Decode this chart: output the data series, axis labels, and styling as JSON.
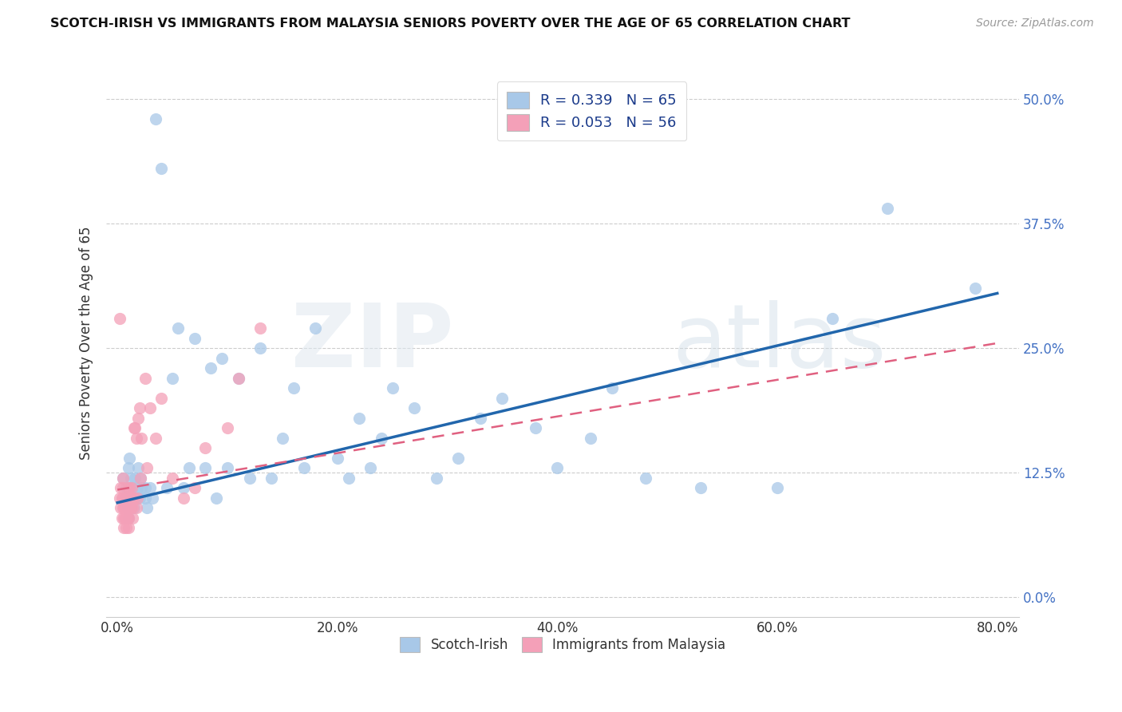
{
  "title": "SCOTCH-IRISH VS IMMIGRANTS FROM MALAYSIA SENIORS POVERTY OVER THE AGE OF 65 CORRELATION CHART",
  "source": "Source: ZipAtlas.com",
  "ylabel": "Seniors Poverty Over the Age of 65",
  "color_blue": "#a8c8e8",
  "color_pink": "#f4a0b8",
  "color_blue_line": "#2166ac",
  "color_pink_line": "#e06080",
  "watermark_zip": "ZIP",
  "watermark_atlas": "atlas",
  "xlim": [
    0.0,
    0.8
  ],
  "ylim": [
    0.0,
    0.5
  ],
  "xticks": [
    0.0,
    0.2,
    0.4,
    0.6,
    0.8
  ],
  "yticks": [
    0.0,
    0.125,
    0.25,
    0.375,
    0.5
  ],
  "blue_line_x": [
    0.0,
    0.8
  ],
  "blue_line_y": [
    0.095,
    0.305
  ],
  "pink_line_x": [
    0.0,
    0.8
  ],
  "pink_line_y": [
    0.108,
    0.255
  ],
  "si_x": [
    0.005,
    0.007,
    0.008,
    0.009,
    0.01,
    0.01,
    0.011,
    0.012,
    0.013,
    0.014,
    0.015,
    0.016,
    0.017,
    0.018,
    0.019,
    0.02,
    0.021,
    0.022,
    0.025,
    0.025,
    0.027,
    0.03,
    0.032,
    0.035,
    0.04,
    0.045,
    0.05,
    0.055,
    0.06,
    0.065,
    0.07,
    0.08,
    0.085,
    0.09,
    0.095,
    0.1,
    0.11,
    0.12,
    0.13,
    0.14,
    0.15,
    0.16,
    0.17,
    0.18,
    0.2,
    0.21,
    0.22,
    0.23,
    0.24,
    0.25,
    0.27,
    0.29,
    0.31,
    0.33,
    0.35,
    0.38,
    0.4,
    0.43,
    0.45,
    0.48,
    0.53,
    0.6,
    0.65,
    0.7,
    0.78
  ],
  "si_y": [
    0.12,
    0.1,
    0.11,
    0.09,
    0.13,
    0.08,
    0.14,
    0.12,
    0.11,
    0.1,
    0.09,
    0.12,
    0.1,
    0.11,
    0.13,
    0.1,
    0.12,
    0.11,
    0.11,
    0.1,
    0.09,
    0.11,
    0.1,
    0.48,
    0.43,
    0.11,
    0.22,
    0.27,
    0.11,
    0.13,
    0.26,
    0.13,
    0.23,
    0.1,
    0.24,
    0.13,
    0.22,
    0.12,
    0.25,
    0.12,
    0.16,
    0.21,
    0.13,
    0.27,
    0.14,
    0.12,
    0.18,
    0.13,
    0.16,
    0.21,
    0.19,
    0.12,
    0.14,
    0.18,
    0.2,
    0.17,
    0.13,
    0.16,
    0.21,
    0.12,
    0.11,
    0.11,
    0.28,
    0.39,
    0.31
  ],
  "mal_x": [
    0.002,
    0.003,
    0.003,
    0.004,
    0.004,
    0.005,
    0.005,
    0.005,
    0.005,
    0.006,
    0.006,
    0.006,
    0.007,
    0.007,
    0.007,
    0.008,
    0.008,
    0.008,
    0.009,
    0.009,
    0.01,
    0.01,
    0.01,
    0.01,
    0.01,
    0.011,
    0.011,
    0.012,
    0.012,
    0.013,
    0.013,
    0.014,
    0.014,
    0.015,
    0.015,
    0.016,
    0.017,
    0.017,
    0.018,
    0.019,
    0.02,
    0.021,
    0.022,
    0.025,
    0.027,
    0.03,
    0.035,
    0.04,
    0.05,
    0.06,
    0.07,
    0.08,
    0.1,
    0.11,
    0.13,
    0.002
  ],
  "mal_y": [
    0.1,
    0.09,
    0.11,
    0.08,
    0.1,
    0.09,
    0.1,
    0.11,
    0.12,
    0.07,
    0.08,
    0.09,
    0.09,
    0.1,
    0.08,
    0.07,
    0.08,
    0.09,
    0.08,
    0.09,
    0.11,
    0.09,
    0.1,
    0.08,
    0.07,
    0.09,
    0.11,
    0.1,
    0.09,
    0.11,
    0.1,
    0.09,
    0.08,
    0.17,
    0.1,
    0.17,
    0.09,
    0.16,
    0.1,
    0.18,
    0.19,
    0.12,
    0.16,
    0.22,
    0.13,
    0.19,
    0.16,
    0.2,
    0.12,
    0.1,
    0.11,
    0.15,
    0.17,
    0.22,
    0.27,
    0.28
  ]
}
